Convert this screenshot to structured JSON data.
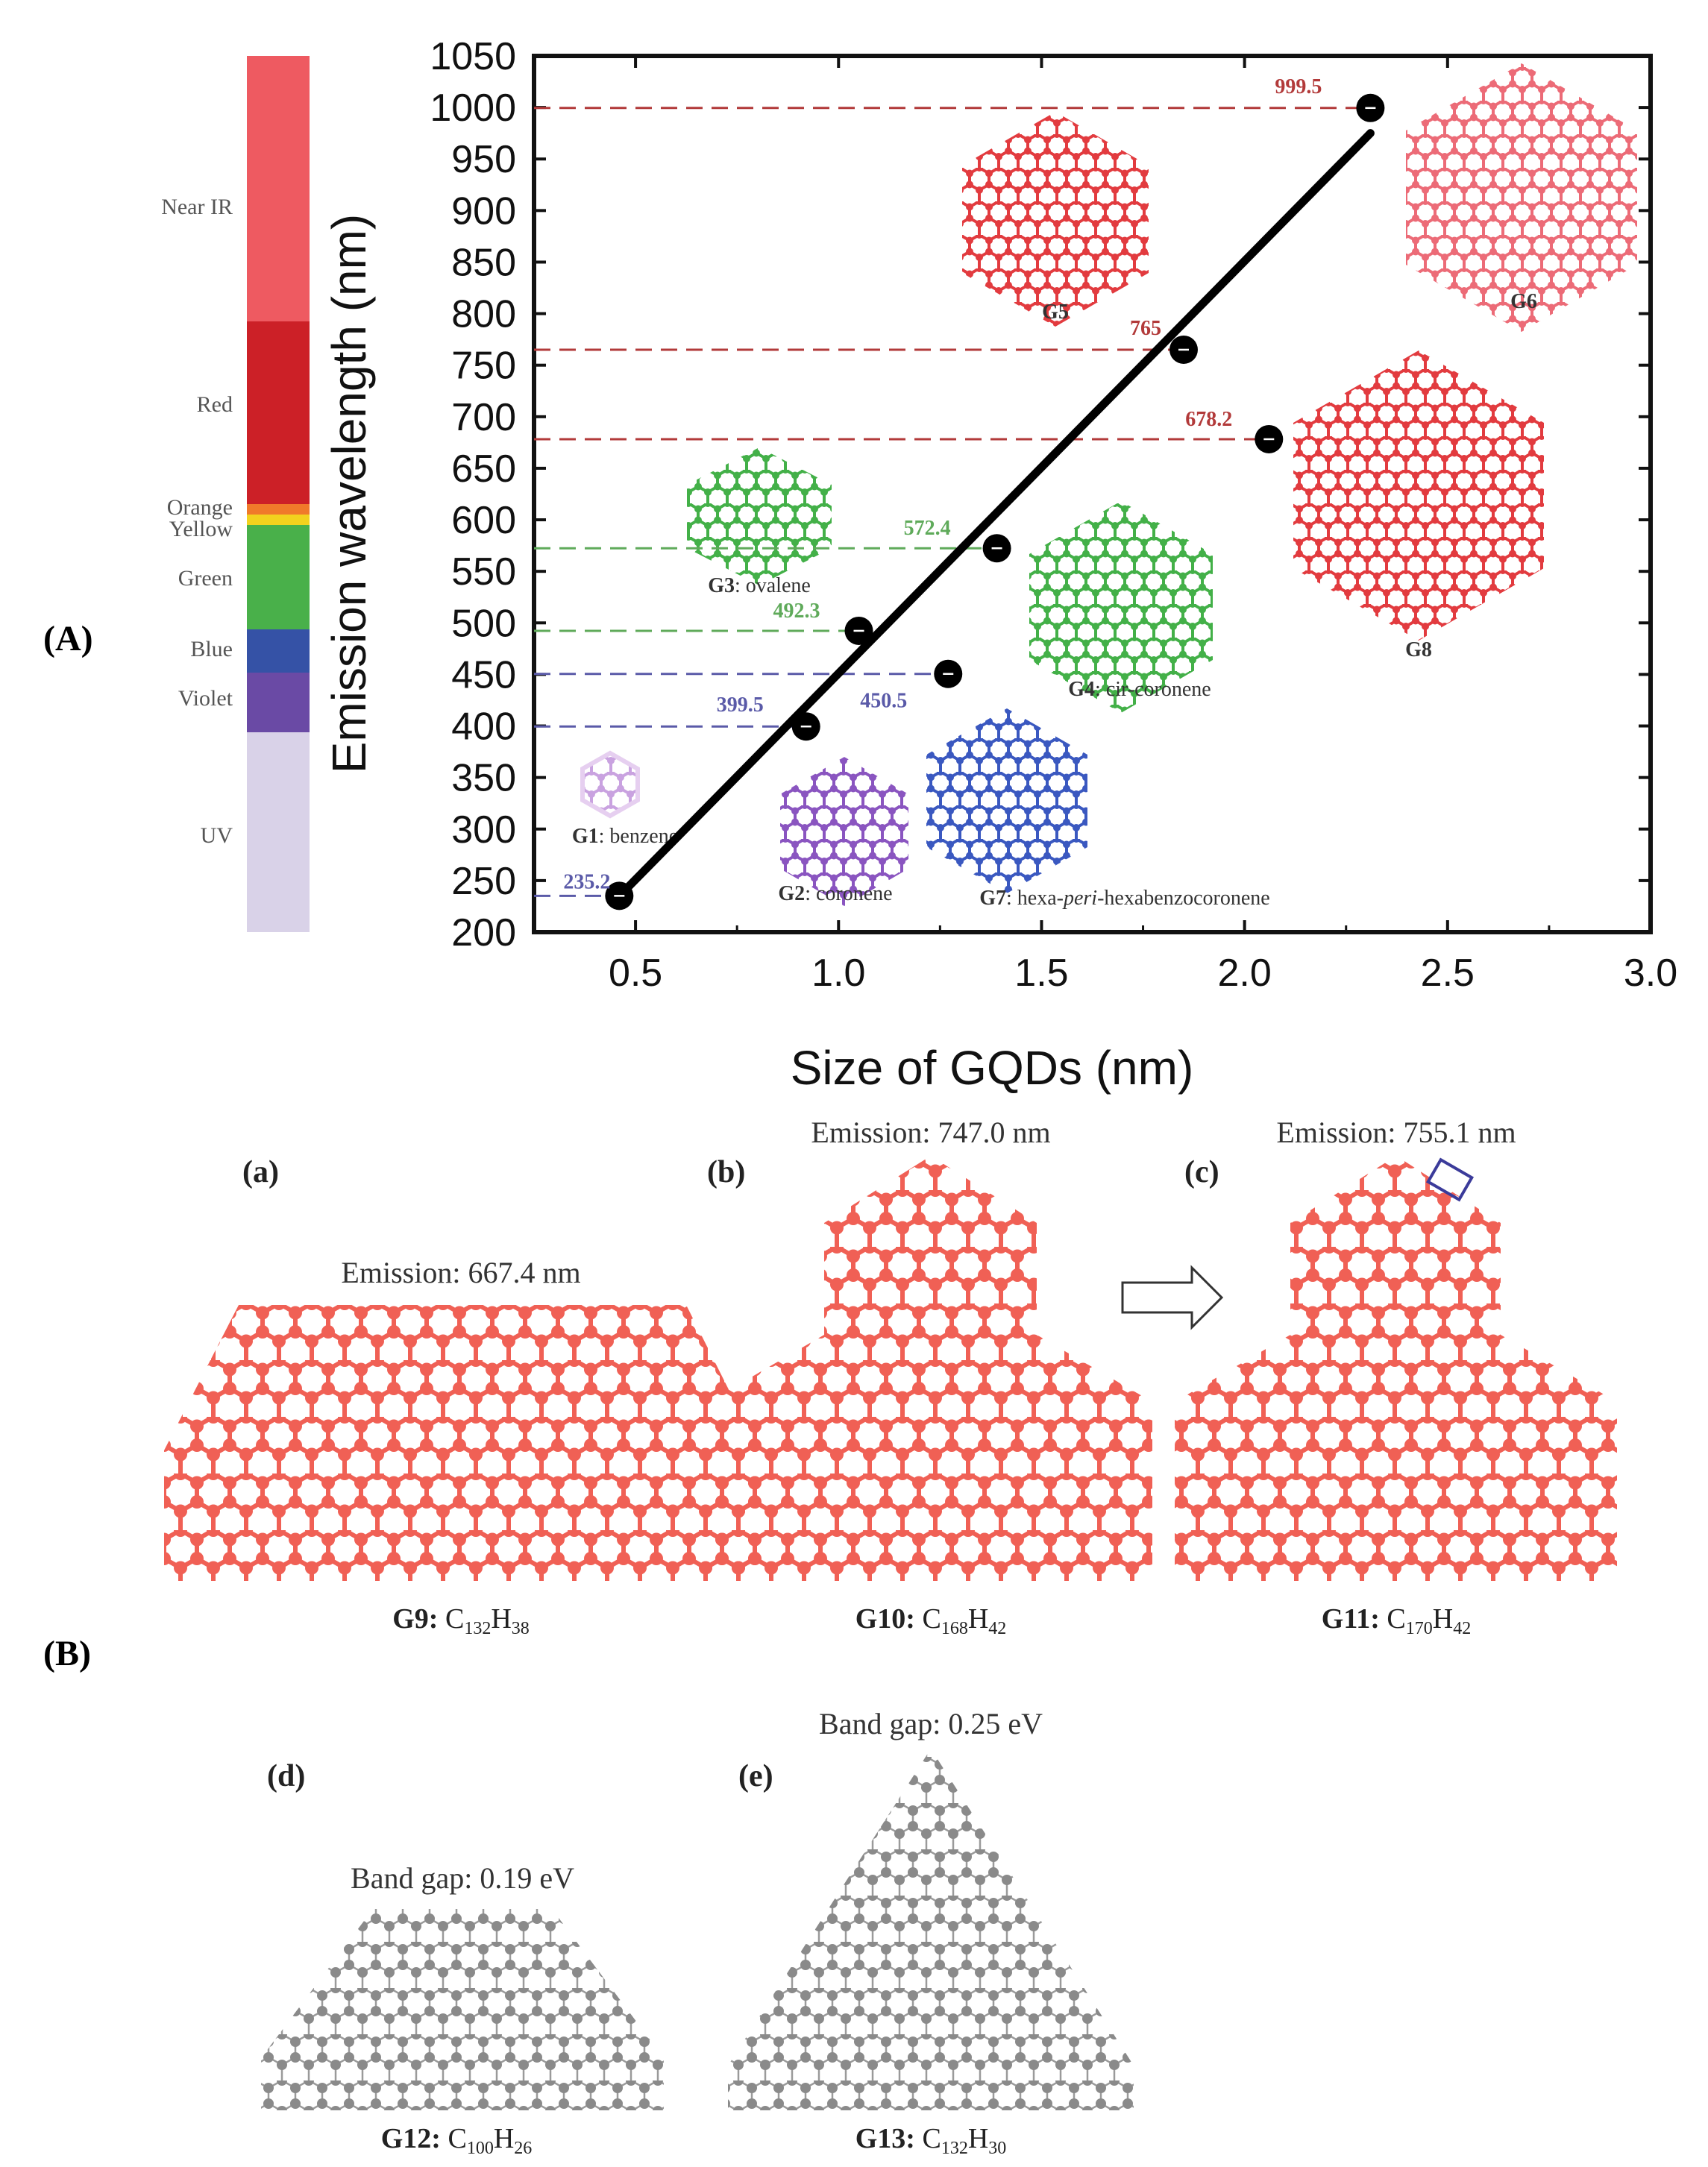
{
  "panel_labels": {
    "A": "(A)",
    "B": "(B)"
  },
  "spectrum": {
    "bands": [
      {
        "name": "Near IR",
        "color": "#ee5a61"
      },
      {
        "name": "Red",
        "color": "#cc2027"
      },
      {
        "name": "Orange",
        "color": "#f07a2a"
      },
      {
        "name": "Yellow",
        "color": "#f2d21e"
      },
      {
        "name": "Green",
        "color": "#49b04a"
      },
      {
        "name": "Blue",
        "color": "#3552a6"
      },
      {
        "name": "Violet",
        "color": "#6a4aa5"
      },
      {
        "name": "UV",
        "color": "#d9d2e8"
      }
    ]
  },
  "chart_data": {
    "type": "scatter",
    "xlabel": "Size of GQDs (nm)",
    "ylabel": "Emission wavelength (nm)",
    "xlim": [
      0.25,
      3.0
    ],
    "ylim": [
      200,
      1050
    ],
    "xticks": [
      "0.5",
      "1.0",
      "1.5",
      "2.0",
      "2.5",
      "3.0"
    ],
    "yticks": [
      "200",
      "250",
      "300",
      "350",
      "400",
      "450",
      "500",
      "550",
      "600",
      "650",
      "700",
      "750",
      "800",
      "850",
      "900",
      "950",
      "1000",
      "1050"
    ],
    "points": [
      {
        "x": 0.46,
        "y": 235.2,
        "label": "235.2",
        "color": "#5a5aa8"
      },
      {
        "x": 0.92,
        "y": 399.5,
        "label": "399.5",
        "color": "#5a5aa8"
      },
      {
        "x": 1.05,
        "y": 492.3,
        "label": "492.3",
        "color": "#5faa5a"
      },
      {
        "x": 1.27,
        "y": 450.5,
        "label": "450.5",
        "color": "#5a5aa8"
      },
      {
        "x": 1.39,
        "y": 572.4,
        "label": "572.4",
        "color": "#5faa5a"
      },
      {
        "x": 1.85,
        "y": 765,
        "label": "765",
        "color": "#b23a3a"
      },
      {
        "x": 2.06,
        "y": 678.2,
        "label": "678.2",
        "color": "#b23a3a"
      },
      {
        "x": 2.31,
        "y": 999.5,
        "label": "999.5",
        "color": "#b23a3a"
      }
    ],
    "fit_line": {
      "x": [
        0.46,
        2.31
      ],
      "y": [
        235,
        975
      ]
    },
    "molecules": [
      {
        "id": "G1",
        "name": "benzene"
      },
      {
        "id": "G2",
        "name": "coronene"
      },
      {
        "id": "G3",
        "name": "ovalene"
      },
      {
        "id": "G4",
        "name": "cir-coronene"
      },
      {
        "id": "G5",
        "name": ""
      },
      {
        "id": "G6",
        "name": ""
      },
      {
        "id": "G7",
        "name_pre": "hexa-",
        "name_it": "peri",
        "name_post": "-hexabenzocoronene"
      },
      {
        "id": "G8",
        "name": ""
      }
    ]
  },
  "panelB": {
    "structures": [
      {
        "tag": "(a)",
        "caption": "Emission: 667.4 nm",
        "id": "G9:",
        "f1": "C",
        "s1": "132",
        "f2": "H",
        "s2": "38",
        "color": "#f05a4f"
      },
      {
        "tag": "(b)",
        "caption": "Emission: 747.0 nm",
        "id": "G10:",
        "f1": "C",
        "s1": "168",
        "f2": "H",
        "s2": "42",
        "color": "#f05a4f"
      },
      {
        "tag": "(c)",
        "caption": "Emission: 755.1 nm",
        "id": "G11:",
        "f1": "C",
        "s1": "170",
        "f2": "H",
        "s2": "42",
        "color": "#f05a4f"
      },
      {
        "tag": "(d)",
        "caption": "Band gap: 0.19 eV",
        "id": "G12:",
        "f1": "C",
        "s1": "100",
        "f2": "H",
        "s2": "26",
        "color": "#7d7d7d"
      },
      {
        "tag": "(e)",
        "caption": "Band gap: 0.25 eV",
        "id": "G13:",
        "f1": "C",
        "s1": "132",
        "f2": "H",
        "s2": "30",
        "color": "#7d7d7d"
      }
    ]
  }
}
